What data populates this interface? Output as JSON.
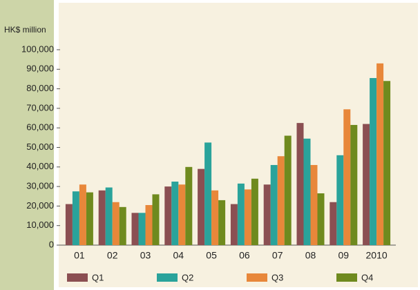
{
  "chart_data": {
    "type": "bar",
    "y_label": "HK$ million",
    "categories": [
      "01",
      "02",
      "03",
      "04",
      "05",
      "06",
      "07",
      "08",
      "09",
      "2010"
    ],
    "series": [
      {
        "name": "Q1",
        "color": "#8b4f52",
        "values": [
          21000,
          28000,
          16500,
          30000,
          39000,
          21000,
          31000,
          62500,
          22000,
          62000
        ]
      },
      {
        "name": "Q2",
        "color": "#2aa39b",
        "values": [
          27500,
          29500,
          16500,
          32500,
          52500,
          31500,
          41000,
          54500,
          46000,
          85500
        ]
      },
      {
        "name": "Q3",
        "color": "#e8873a",
        "values": [
          31000,
          22000,
          20500,
          31000,
          28000,
          28500,
          45500,
          41000,
          69500,
          93000
        ]
      },
      {
        "name": "Q4",
        "color": "#6f8a1e",
        "values": [
          27000,
          19500,
          26000,
          40000,
          23000,
          34000,
          56000,
          26500,
          61500,
          84000
        ]
      }
    ],
    "ylim": [
      0,
      100000
    ],
    "yticks": [
      0,
      {
        "value": 10000,
        "label": "10,000"
      },
      {
        "value": 20000,
        "label": "20,000"
      },
      {
        "value": 30000,
        "label": "30,000"
      },
      {
        "value": 40000,
        "label": "40,000"
      },
      {
        "value": 50000,
        "label": "50,000"
      },
      {
        "value": 60000,
        "label": "60,000"
      },
      {
        "value": 70000,
        "label": "70,000"
      },
      {
        "value": 80000,
        "label": "80,000"
      },
      {
        "value": 90000,
        "label": "90,000"
      },
      {
        "value": 100000,
        "label": "100,000"
      }
    ]
  }
}
